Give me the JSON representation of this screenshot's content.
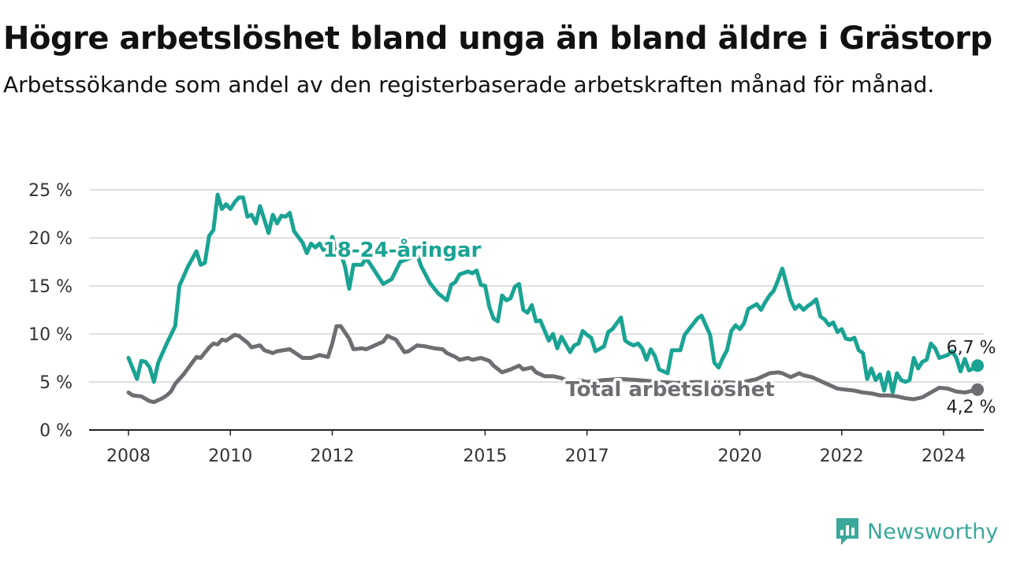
{
  "title": "Högre arbetslöshet bland unga än bland äldre i Grästorp",
  "subtitle": "Arbetssökande som andel av den registerbaserade arbetskraften månad för månad.",
  "brand": {
    "name": "Newsworthy",
    "icon": "newsworthy-logo-icon",
    "color": "#3aa89a"
  },
  "chart_data": {
    "type": "line",
    "title": "Högre arbetslöshet bland unga än bland äldre i Grästorp",
    "subtitle": "Arbetssökande som andel av den registerbaserade arbetskraften månad för månad.",
    "xlabel": "",
    "ylabel": "",
    "x_ticks": [
      "2008",
      "2010",
      "2012",
      "2015",
      "2017",
      "2020",
      "2022",
      "2024"
    ],
    "y_ticks": [
      "0 %",
      "5 %",
      "10 %",
      "15 %",
      "20 %",
      "25 %"
    ],
    "ylim": [
      0,
      25
    ],
    "grid": "horizontal",
    "legend": "direct labels on lines",
    "series": [
      {
        "name": "18-24-åringar",
        "color": "#1aa393",
        "end_label": "6,7 %",
        "points": [
          [
            "2008-01",
            7.5
          ],
          [
            "2008-03",
            5.3
          ],
          [
            "2008-04",
            7.2
          ],
          [
            "2008-05",
            7.1
          ],
          [
            "2008-06",
            6.5
          ],
          [
            "2008-07",
            5.0
          ],
          [
            "2008-08",
            7.0
          ],
          [
            "2008-10",
            9.0
          ],
          [
            "2008-12",
            10.8
          ],
          [
            "2009-01",
            15.0
          ],
          [
            "2009-03",
            17.0
          ],
          [
            "2009-05",
            18.6
          ],
          [
            "2009-06",
            17.2
          ],
          [
            "2009-07",
            17.4
          ],
          [
            "2009-08",
            20.2
          ],
          [
            "2009-09",
            20.8
          ],
          [
            "2009-10",
            24.5
          ],
          [
            "2009-11",
            23.0
          ],
          [
            "2009-12",
            23.5
          ],
          [
            "2010-01",
            23.0
          ],
          [
            "2010-02",
            23.7
          ],
          [
            "2010-03",
            24.2
          ],
          [
            "2010-04",
            24.2
          ],
          [
            "2010-05",
            22.2
          ],
          [
            "2010-06",
            22.4
          ],
          [
            "2010-07",
            21.5
          ],
          [
            "2010-08",
            23.3
          ],
          [
            "2010-10",
            20.5
          ],
          [
            "2010-11",
            22.4
          ],
          [
            "2010-12",
            21.5
          ],
          [
            "2011-01",
            22.3
          ],
          [
            "2011-02",
            22.2
          ],
          [
            "2011-03",
            22.6
          ],
          [
            "2011-04",
            20.7
          ],
          [
            "2011-06",
            19.5
          ],
          [
            "2011-07",
            18.4
          ],
          [
            "2011-08",
            19.4
          ],
          [
            "2011-09",
            19.0
          ],
          [
            "2011-10",
            19.4
          ],
          [
            "2011-11",
            18.7
          ],
          [
            "2011-12",
            18.8
          ],
          [
            "2012-01",
            20.1
          ],
          [
            "2012-02",
            18.4
          ],
          [
            "2012-03",
            18.4
          ],
          [
            "2012-04",
            17.0
          ],
          [
            "2012-05",
            14.7
          ],
          [
            "2012-06",
            17.2
          ],
          [
            "2012-08",
            17.2
          ],
          [
            "2012-09",
            17.9
          ],
          [
            "2013-01",
            15.2
          ],
          [
            "2013-03",
            15.7
          ],
          [
            "2013-05",
            17.5
          ],
          [
            "2013-09",
            18.2
          ],
          [
            "2013-10",
            17.0
          ],
          [
            "2013-12",
            15.3
          ],
          [
            "2014-02",
            14.2
          ],
          [
            "2014-04",
            13.5
          ],
          [
            "2014-05",
            15.1
          ],
          [
            "2014-06",
            15.4
          ],
          [
            "2014-07",
            16.2
          ],
          [
            "2014-09",
            16.5
          ],
          [
            "2014-10",
            16.3
          ],
          [
            "2014-11",
            16.6
          ],
          [
            "2014-12",
            15.1
          ],
          [
            "2015-01",
            15.0
          ],
          [
            "2015-02",
            12.8
          ],
          [
            "2015-03",
            11.6
          ],
          [
            "2015-04",
            11.3
          ],
          [
            "2015-05",
            14.0
          ],
          [
            "2015-06",
            13.5
          ],
          [
            "2015-07",
            13.7
          ],
          [
            "2015-08",
            14.9
          ],
          [
            "2015-09",
            15.2
          ],
          [
            "2015-10",
            12.5
          ],
          [
            "2015-11",
            12.2
          ],
          [
            "2015-12",
            13.0
          ],
          [
            "2016-01",
            11.3
          ],
          [
            "2016-02",
            11.4
          ],
          [
            "2016-04",
            9.3
          ],
          [
            "2016-05",
            10.0
          ],
          [
            "2016-06",
            8.5
          ],
          [
            "2016-07",
            9.7
          ],
          [
            "2016-09",
            8.1
          ],
          [
            "2016-10",
            8.8
          ],
          [
            "2016-11",
            9.0
          ],
          [
            "2016-12",
            10.3
          ],
          [
            "2017-01",
            9.9
          ],
          [
            "2017-02",
            9.6
          ],
          [
            "2017-03",
            8.2
          ],
          [
            "2017-05",
            8.7
          ],
          [
            "2017-06",
            10.2
          ],
          [
            "2017-07",
            10.5
          ],
          [
            "2017-09",
            11.7
          ],
          [
            "2017-10",
            9.3
          ],
          [
            "2017-11",
            9.0
          ],
          [
            "2017-12",
            8.8
          ],
          [
            "2018-01",
            9.0
          ],
          [
            "2018-02",
            8.5
          ],
          [
            "2018-03",
            7.3
          ],
          [
            "2018-04",
            8.4
          ],
          [
            "2018-05",
            7.7
          ],
          [
            "2018-06",
            6.3
          ],
          [
            "2018-08",
            5.9
          ],
          [
            "2018-09",
            8.3
          ],
          [
            "2018-11",
            8.3
          ],
          [
            "2018-12",
            9.9
          ],
          [
            "2019-03",
            11.6
          ],
          [
            "2019-04",
            11.9
          ],
          [
            "2019-06",
            9.9
          ],
          [
            "2019-07",
            7.0
          ],
          [
            "2019-08",
            6.5
          ],
          [
            "2019-09",
            7.5
          ],
          [
            "2019-10",
            8.3
          ],
          [
            "2019-11",
            10.3
          ],
          [
            "2019-12",
            10.9
          ],
          [
            "2020-01",
            10.5
          ],
          [
            "2020-02",
            11.1
          ],
          [
            "2020-03",
            12.6
          ],
          [
            "2020-05",
            13.1
          ],
          [
            "2020-06",
            12.5
          ],
          [
            "2020-07",
            13.3
          ],
          [
            "2020-08",
            14.0
          ],
          [
            "2020-09",
            14.5
          ],
          [
            "2020-10",
            15.6
          ],
          [
            "2020-11",
            16.8
          ],
          [
            "2020-12",
            15.2
          ],
          [
            "2021-01",
            13.5
          ],
          [
            "2021-02",
            12.6
          ],
          [
            "2021-03",
            13.0
          ],
          [
            "2021-04",
            12.5
          ],
          [
            "2021-05",
            12.9
          ],
          [
            "2021-06",
            13.2
          ],
          [
            "2021-07",
            13.6
          ],
          [
            "2021-08",
            11.8
          ],
          [
            "2021-09",
            11.5
          ],
          [
            "2021-10",
            10.9
          ],
          [
            "2021-11",
            11.2
          ],
          [
            "2021-12",
            10.2
          ],
          [
            "2022-01",
            10.5
          ],
          [
            "2022-02",
            9.5
          ],
          [
            "2022-03",
            9.4
          ],
          [
            "2022-04",
            9.6
          ],
          [
            "2022-05",
            8.3
          ],
          [
            "2022-06",
            8.0
          ],
          [
            "2022-07",
            5.3
          ],
          [
            "2022-08",
            6.4
          ],
          [
            "2022-09",
            5.2
          ],
          [
            "2022-10",
            5.8
          ],
          [
            "2022-11",
            4.1
          ],
          [
            "2022-12",
            6.0
          ],
          [
            "2023-01",
            3.9
          ],
          [
            "2023-02",
            5.9
          ],
          [
            "2023-03",
            5.2
          ],
          [
            "2023-04",
            5.0
          ],
          [
            "2023-05",
            5.2
          ],
          [
            "2023-06",
            7.5
          ],
          [
            "2023-07",
            6.4
          ],
          [
            "2023-08",
            7.1
          ],
          [
            "2023-09",
            7.3
          ],
          [
            "2023-10",
            9.0
          ],
          [
            "2023-11",
            8.5
          ],
          [
            "2023-12",
            7.5
          ],
          [
            "2024-02",
            7.8
          ],
          [
            "2024-03",
            8.2
          ],
          [
            "2024-04",
            7.5
          ],
          [
            "2024-05",
            6.1
          ],
          [
            "2024-06",
            7.4
          ],
          [
            "2024-07",
            6.2
          ],
          [
            "2024-08",
            6.4
          ],
          [
            "2024-09",
            6.7
          ]
        ]
      },
      {
        "name": "Total arbetslöshet",
        "color": "#6d6d72",
        "end_label": "4,2 %",
        "points": [
          [
            "2008-01",
            3.9
          ],
          [
            "2008-02",
            3.6
          ],
          [
            "2008-04",
            3.5
          ],
          [
            "2008-06",
            3.0
          ],
          [
            "2008-07",
            2.9
          ],
          [
            "2008-09",
            3.3
          ],
          [
            "2008-10",
            3.6
          ],
          [
            "2008-11",
            4.0
          ],
          [
            "2008-12",
            4.8
          ],
          [
            "2009-02",
            5.8
          ],
          [
            "2009-04",
            7.0
          ],
          [
            "2009-05",
            7.6
          ],
          [
            "2009-06",
            7.5
          ],
          [
            "2009-08",
            8.6
          ],
          [
            "2009-09",
            9.0
          ],
          [
            "2009-10",
            8.9
          ],
          [
            "2009-11",
            9.4
          ],
          [
            "2009-12",
            9.3
          ],
          [
            "2010-02",
            9.9
          ],
          [
            "2010-03",
            9.8
          ],
          [
            "2010-05",
            9.1
          ],
          [
            "2010-06",
            8.6
          ],
          [
            "2010-08",
            8.8
          ],
          [
            "2010-09",
            8.3
          ],
          [
            "2010-11",
            8.0
          ],
          [
            "2010-12",
            8.2
          ],
          [
            "2011-03",
            8.4
          ],
          [
            "2011-05",
            7.8
          ],
          [
            "2011-06",
            7.5
          ],
          [
            "2011-08",
            7.5
          ],
          [
            "2011-10",
            7.8
          ],
          [
            "2011-11",
            7.7
          ],
          [
            "2011-12",
            7.6
          ],
          [
            "2012-01",
            9.0
          ],
          [
            "2012-02",
            10.8
          ],
          [
            "2012-03",
            10.8
          ],
          [
            "2012-05",
            9.5
          ],
          [
            "2012-06",
            8.4
          ],
          [
            "2012-08",
            8.5
          ],
          [
            "2012-09",
            8.4
          ],
          [
            "2012-11",
            8.8
          ],
          [
            "2013-01",
            9.2
          ],
          [
            "2013-02",
            9.8
          ],
          [
            "2013-04",
            9.4
          ],
          [
            "2013-06",
            8.1
          ],
          [
            "2013-07",
            8.2
          ],
          [
            "2013-09",
            8.8
          ],
          [
            "2013-11",
            8.7
          ],
          [
            "2014-01",
            8.5
          ],
          [
            "2014-03",
            8.4
          ],
          [
            "2014-04",
            8.0
          ],
          [
            "2014-06",
            7.6
          ],
          [
            "2014-07",
            7.3
          ],
          [
            "2014-09",
            7.5
          ],
          [
            "2014-10",
            7.3
          ],
          [
            "2014-12",
            7.5
          ],
          [
            "2015-02",
            7.2
          ],
          [
            "2015-03",
            6.7
          ],
          [
            "2015-05",
            6.0
          ],
          [
            "2015-07",
            6.3
          ],
          [
            "2015-09",
            6.7
          ],
          [
            "2015-10",
            6.3
          ],
          [
            "2015-12",
            6.5
          ],
          [
            "2016-01",
            6.0
          ],
          [
            "2016-03",
            5.6
          ],
          [
            "2016-05",
            5.6
          ],
          [
            "2016-07",
            5.4
          ],
          [
            "2016-09",
            5.0
          ],
          [
            "2016-11",
            5.2
          ],
          [
            "2017-01",
            5.0
          ],
          [
            "2017-05",
            5.2
          ],
          [
            "2017-09",
            5.3
          ],
          [
            "2018-01",
            5.2
          ],
          [
            "2018-06",
            5.0
          ],
          [
            "2018-10",
            4.9
          ],
          [
            "2019-03",
            5.0
          ],
          [
            "2019-08",
            5.0
          ],
          [
            "2020-01",
            4.9
          ],
          [
            "2020-05",
            5.3
          ],
          [
            "2020-08",
            5.9
          ],
          [
            "2020-10",
            6.0
          ],
          [
            "2020-11",
            5.9
          ],
          [
            "2021-01",
            5.5
          ],
          [
            "2021-03",
            5.9
          ],
          [
            "2021-04",
            5.7
          ],
          [
            "2021-06",
            5.5
          ],
          [
            "2021-08",
            5.1
          ],
          [
            "2021-10",
            4.7
          ],
          [
            "2021-12",
            4.3
          ],
          [
            "2022-02",
            4.2
          ],
          [
            "2022-04",
            4.1
          ],
          [
            "2022-06",
            3.9
          ],
          [
            "2022-08",
            3.8
          ],
          [
            "2022-10",
            3.6
          ],
          [
            "2022-12",
            3.6
          ],
          [
            "2023-02",
            3.5
          ],
          [
            "2023-04",
            3.3
          ],
          [
            "2023-06",
            3.2
          ],
          [
            "2023-08",
            3.4
          ],
          [
            "2023-10",
            3.9
          ],
          [
            "2023-12",
            4.4
          ],
          [
            "2024-02",
            4.3
          ],
          [
            "2024-04",
            4.0
          ],
          [
            "2024-06",
            3.9
          ],
          [
            "2024-09",
            4.2
          ]
        ]
      }
    ]
  }
}
